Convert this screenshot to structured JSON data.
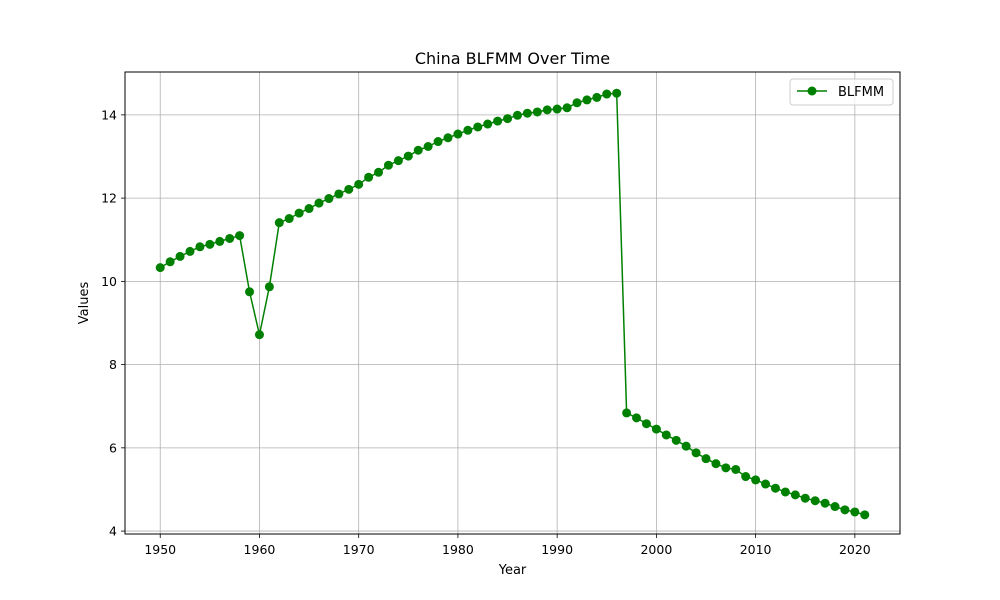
{
  "chart_data": {
    "type": "line",
    "title": "China BLFMM Over Time",
    "xlabel": "Year",
    "ylabel": "Values",
    "xlim": [
      1946.45,
      2024.55
    ],
    "ylim": [
      3.93,
      15.03
    ],
    "xticks": [
      1950,
      1960,
      1970,
      1980,
      1990,
      2000,
      2010,
      2020
    ],
    "yticks": [
      4,
      6,
      8,
      10,
      12,
      14
    ],
    "grid": true,
    "legend_position": "top-right",
    "series": [
      {
        "name": "BLFMM",
        "color": "#008000",
        "marker": "circle",
        "x": [
          1950,
          1951,
          1952,
          1953,
          1954,
          1955,
          1956,
          1957,
          1958,
          1959,
          1960,
          1961,
          1962,
          1963,
          1964,
          1965,
          1966,
          1967,
          1968,
          1969,
          1970,
          1971,
          1972,
          1973,
          1974,
          1975,
          1976,
          1977,
          1978,
          1979,
          1980,
          1981,
          1982,
          1983,
          1984,
          1985,
          1986,
          1987,
          1988,
          1989,
          1990,
          1991,
          1992,
          1993,
          1994,
          1995,
          1996,
          1997,
          1998,
          1999,
          2000,
          2001,
          2002,
          2003,
          2004,
          2005,
          2006,
          2007,
          2008,
          2009,
          2010,
          2011,
          2012,
          2013,
          2014,
          2015,
          2016,
          2017,
          2018,
          2019,
          2020,
          2021
        ],
        "values": [
          10.33,
          10.47,
          10.6,
          10.72,
          10.83,
          10.89,
          10.96,
          11.03,
          11.1,
          9.75,
          8.72,
          9.87,
          11.41,
          11.51,
          11.64,
          11.75,
          11.88,
          11.99,
          12.1,
          12.21,
          12.33,
          12.5,
          12.62,
          12.79,
          12.9,
          13.01,
          13.15,
          13.24,
          13.36,
          13.45,
          13.54,
          13.63,
          13.71,
          13.78,
          13.85,
          13.91,
          13.99,
          14.04,
          14.07,
          14.12,
          14.14,
          14.17,
          14.29,
          14.36,
          14.42,
          14.5,
          14.52,
          6.84,
          6.72,
          6.58,
          6.45,
          6.31,
          6.18,
          6.04,
          5.88,
          5.74,
          5.62,
          5.52,
          5.48,
          5.31,
          5.23,
          5.13,
          5.03,
          4.94,
          4.87,
          4.79,
          4.73,
          4.67,
          4.59,
          4.51,
          4.46,
          4.39
        ]
      }
    ]
  }
}
